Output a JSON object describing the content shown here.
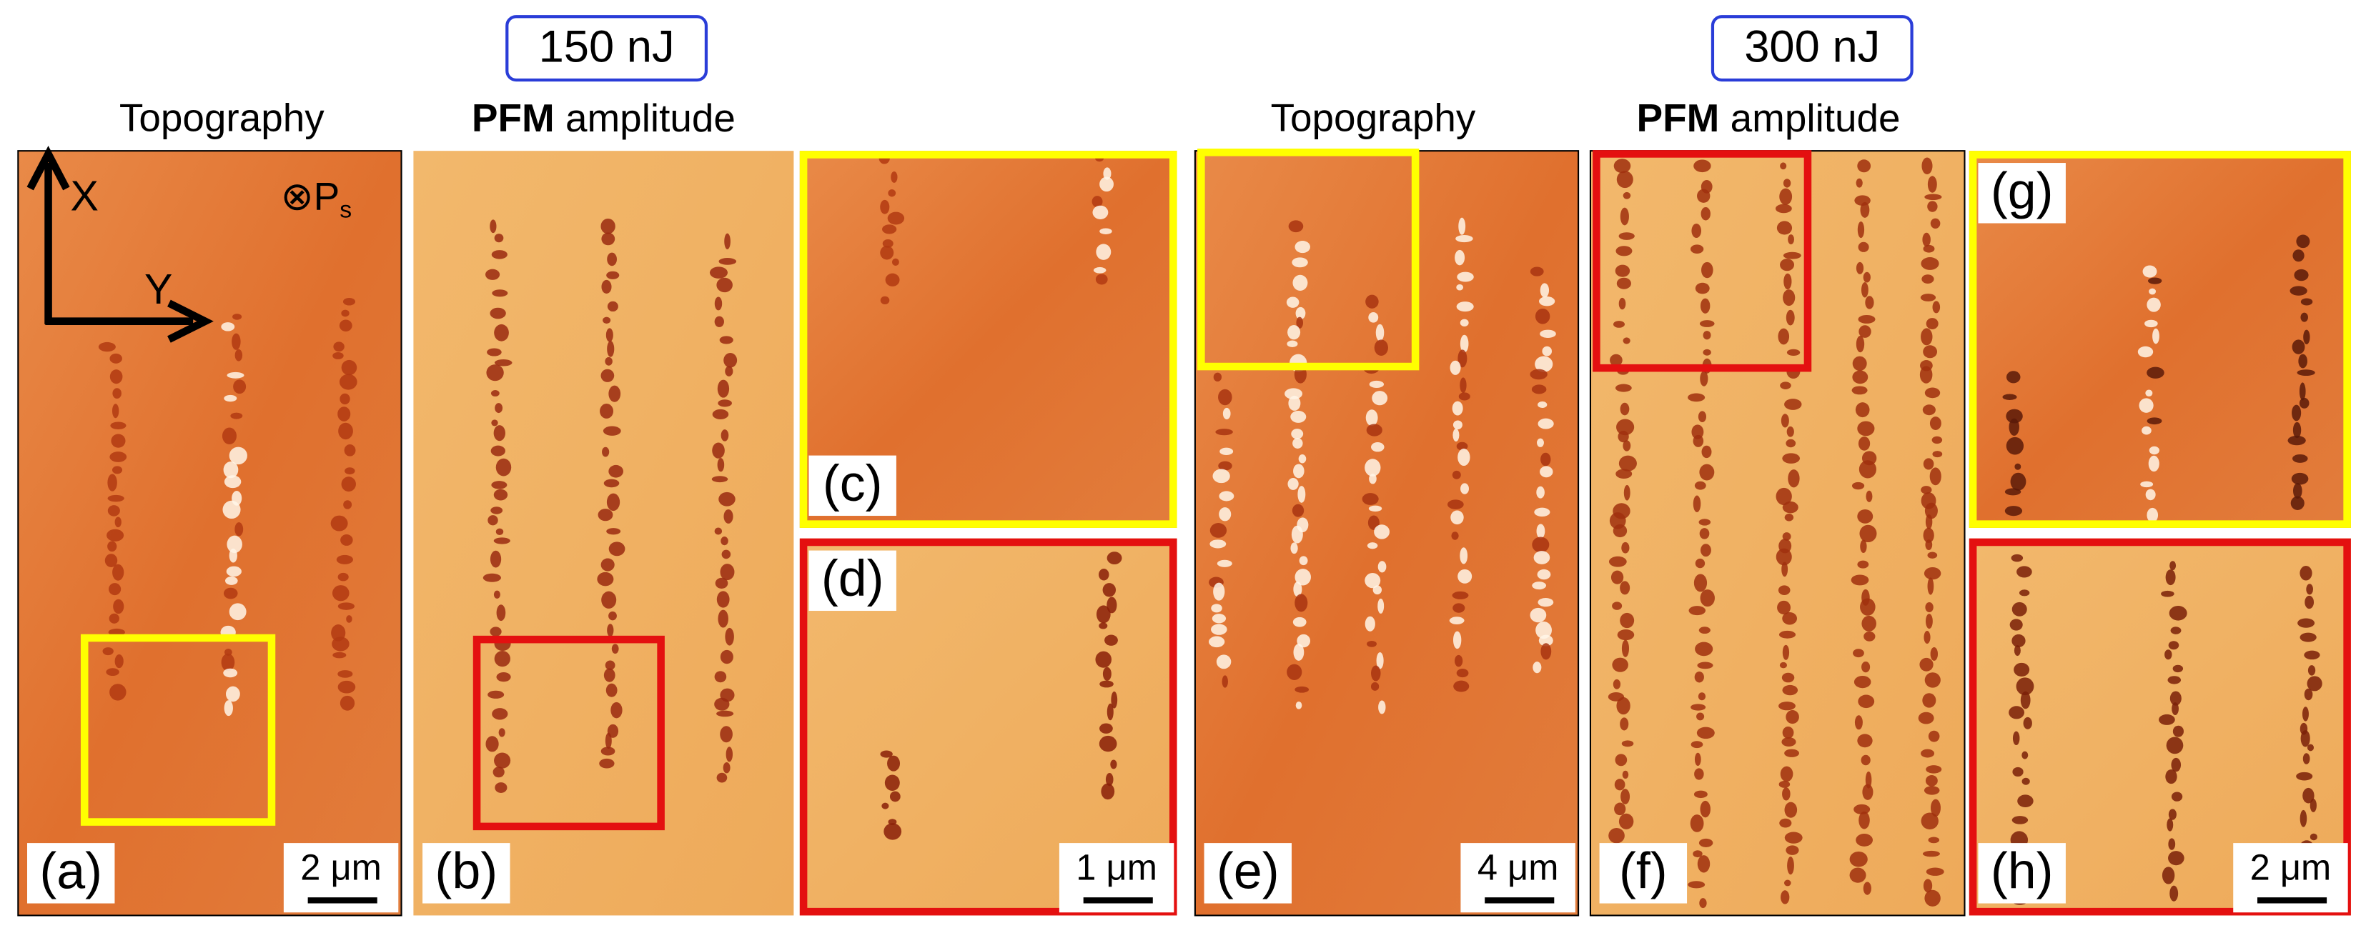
{
  "energies": [
    "150 nJ",
    "300 nJ"
  ],
  "headers": [
    {
      "text": "Topography"
    },
    {
      "bold": "PFM",
      "rest": "amplitude"
    },
    {
      "text": "Topography"
    },
    {
      "bold": "PFM",
      "rest": "amplitude"
    }
  ],
  "axes": {
    "x": "X",
    "y": "Y",
    "polarization": "⊗P",
    "polarization_sub": "s"
  },
  "panels": [
    {
      "label": "(a)",
      "scale_bar": "2 μm"
    },
    {
      "label": "(b)"
    },
    {
      "label": "(c)"
    },
    {
      "label": "(d)",
      "scale_bar": "1 μm"
    },
    {
      "label": "(e)",
      "scale_bar": "4 μm"
    },
    {
      "label": "(f)"
    },
    {
      "label": "(g)"
    },
    {
      "label": "(h)",
      "scale_bar": "2 μm"
    }
  ]
}
